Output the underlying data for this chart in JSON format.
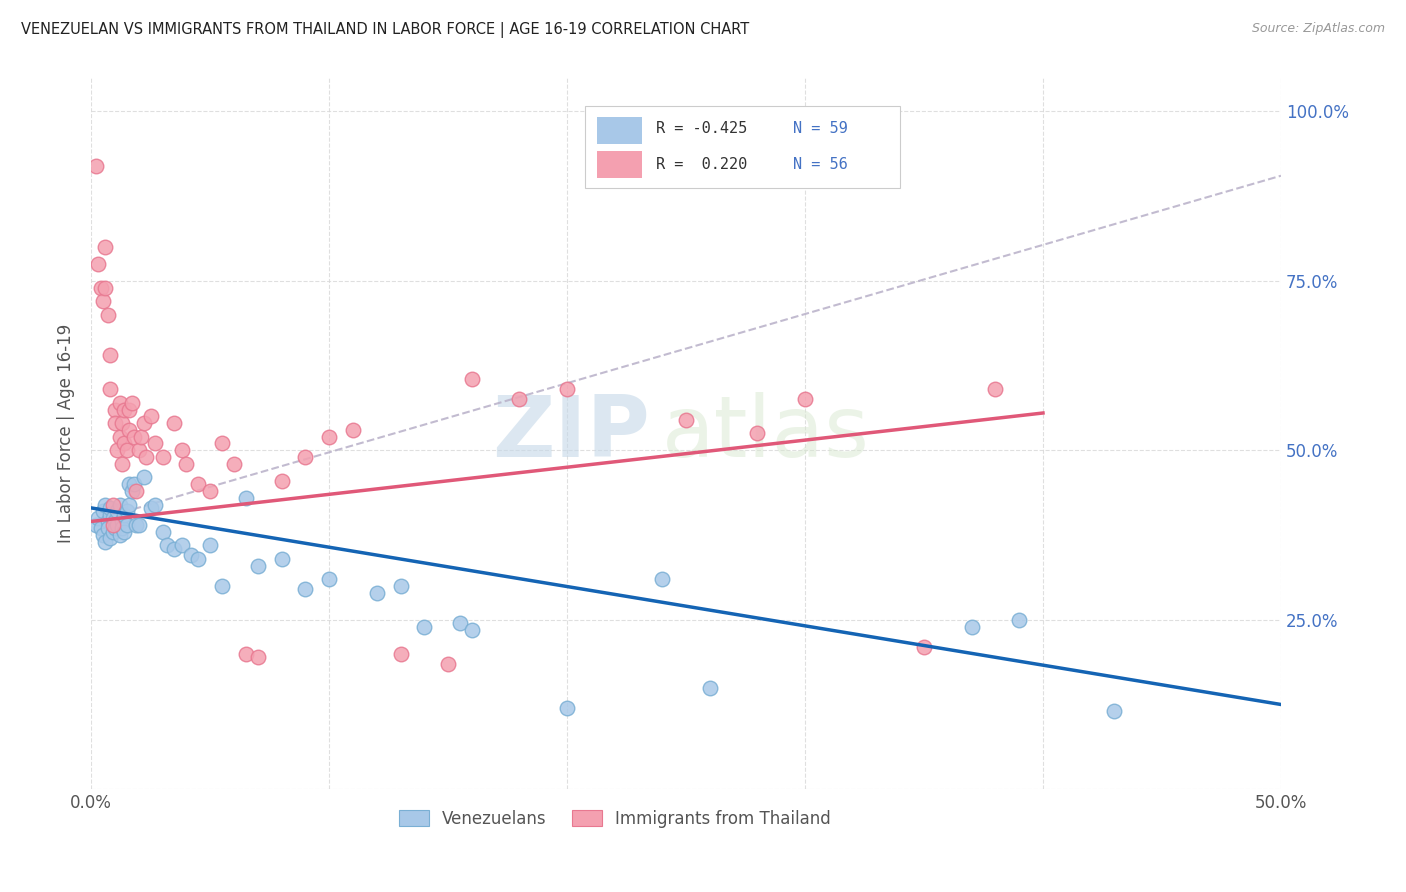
{
  "title": "VENEZUELAN VS IMMIGRANTS FROM THAILAND IN LABOR FORCE | AGE 16-19 CORRELATION CHART",
  "source": "Source: ZipAtlas.com",
  "ylabel": "In Labor Force | Age 16-19",
  "xlim": [
    0.0,
    0.5
  ],
  "ylim": [
    0.0,
    1.05
  ],
  "watermark_zip": "ZIP",
  "watermark_atlas": "atlas",
  "legend_R1": "R = -0.425",
  "legend_N1": "N = 59",
  "legend_R2": "R =  0.220",
  "legend_N2": "N = 56",
  "blue_color": "#a8c8e8",
  "pink_color": "#f4a0b0",
  "blue_scatter_edge": "#7aafd4",
  "pink_scatter_edge": "#e87890",
  "blue_line_color": "#1464b4",
  "pink_line_color": "#e05878",
  "dashed_line_color": "#b8b0c8",
  "legend_label1": "Venezuelans",
  "legend_label2": "Immigrants from Thailand",
  "blue_scatter_x": [
    0.002,
    0.003,
    0.004,
    0.005,
    0.005,
    0.006,
    0.006,
    0.007,
    0.007,
    0.008,
    0.008,
    0.008,
    0.009,
    0.009,
    0.01,
    0.01,
    0.011,
    0.011,
    0.012,
    0.012,
    0.013,
    0.013,
    0.014,
    0.014,
    0.015,
    0.015,
    0.016,
    0.016,
    0.017,
    0.018,
    0.019,
    0.02,
    0.022,
    0.025,
    0.027,
    0.03,
    0.032,
    0.035,
    0.038,
    0.042,
    0.045,
    0.05,
    0.055,
    0.065,
    0.07,
    0.08,
    0.09,
    0.1,
    0.12,
    0.13,
    0.14,
    0.155,
    0.16,
    0.2,
    0.24,
    0.26,
    0.37,
    0.39,
    0.43
  ],
  "blue_scatter_y": [
    0.39,
    0.4,
    0.385,
    0.41,
    0.375,
    0.42,
    0.365,
    0.395,
    0.385,
    0.405,
    0.415,
    0.37,
    0.4,
    0.38,
    0.395,
    0.385,
    0.41,
    0.39,
    0.42,
    0.375,
    0.395,
    0.385,
    0.405,
    0.38,
    0.41,
    0.39,
    0.45,
    0.42,
    0.44,
    0.45,
    0.39,
    0.39,
    0.46,
    0.415,
    0.42,
    0.38,
    0.36,
    0.355,
    0.36,
    0.345,
    0.34,
    0.36,
    0.3,
    0.43,
    0.33,
    0.34,
    0.295,
    0.31,
    0.29,
    0.3,
    0.24,
    0.245,
    0.235,
    0.12,
    0.31,
    0.15,
    0.24,
    0.25,
    0.115
  ],
  "pink_scatter_x": [
    0.002,
    0.003,
    0.004,
    0.005,
    0.006,
    0.006,
    0.007,
    0.008,
    0.008,
    0.009,
    0.009,
    0.01,
    0.01,
    0.011,
    0.012,
    0.012,
    0.013,
    0.013,
    0.014,
    0.014,
    0.015,
    0.016,
    0.016,
    0.017,
    0.018,
    0.019,
    0.02,
    0.021,
    0.022,
    0.023,
    0.025,
    0.027,
    0.03,
    0.035,
    0.038,
    0.04,
    0.045,
    0.05,
    0.055,
    0.06,
    0.065,
    0.07,
    0.08,
    0.09,
    0.1,
    0.11,
    0.13,
    0.15,
    0.16,
    0.18,
    0.2,
    0.25,
    0.28,
    0.3,
    0.35,
    0.38
  ],
  "pink_scatter_y": [
    0.92,
    0.775,
    0.74,
    0.72,
    0.8,
    0.74,
    0.7,
    0.64,
    0.59,
    0.42,
    0.39,
    0.56,
    0.54,
    0.5,
    0.57,
    0.52,
    0.54,
    0.48,
    0.56,
    0.51,
    0.5,
    0.56,
    0.53,
    0.57,
    0.52,
    0.44,
    0.5,
    0.52,
    0.54,
    0.49,
    0.55,
    0.51,
    0.49,
    0.54,
    0.5,
    0.48,
    0.45,
    0.44,
    0.51,
    0.48,
    0.2,
    0.195,
    0.455,
    0.49,
    0.52,
    0.53,
    0.2,
    0.185,
    0.605,
    0.575,
    0.59,
    0.545,
    0.525,
    0.575,
    0.21,
    0.59
  ],
  "blue_trend_x": [
    0.0,
    0.5
  ],
  "blue_trend_y": [
    0.415,
    0.125
  ],
  "pink_trend_x": [
    0.0,
    0.4
  ],
  "pink_trend_y": [
    0.395,
    0.555
  ],
  "dashed_trend_x": [
    0.0,
    0.5
  ],
  "dashed_trend_y": [
    0.395,
    0.905
  ]
}
